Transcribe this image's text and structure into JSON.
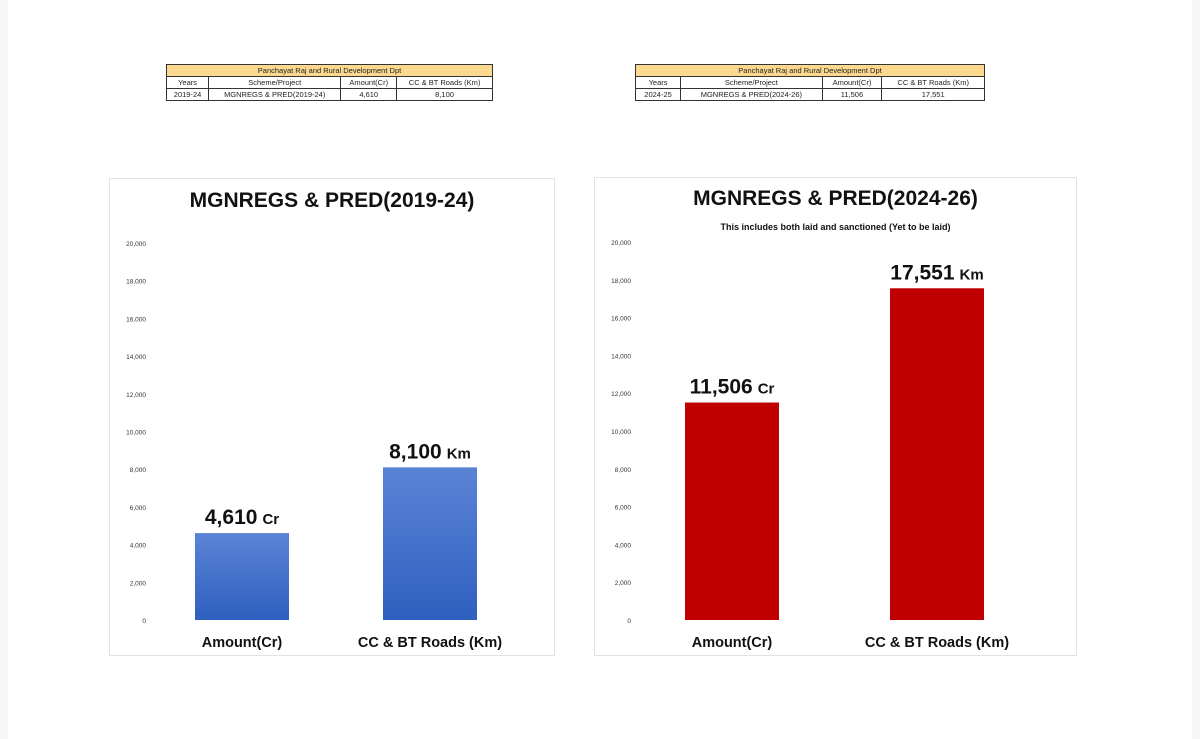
{
  "tables": [
    {
      "title": "Panchayat Raj and Rural Development Dpt",
      "headers": [
        "Years",
        "Scheme/Project",
        "Amount(Cr)",
        "CC & BT Roads (Km)"
      ],
      "row": [
        "2019-24",
        "MGNREGS & PRED(2019-24)",
        "4,610",
        "8,100"
      ]
    },
    {
      "title": "Panchayat Raj and Rural Development Dpt",
      "headers": [
        "Years",
        "Scheme/Project",
        "Amount(Cr)",
        "CC & BT Roads (Km)"
      ],
      "row": [
        "2024-25",
        "MGNREGS & PRED(2024-26)",
        "11,506",
        "17,551"
      ]
    }
  ],
  "chart_data": [
    {
      "type": "bar",
      "title": "MGNREGS & PRED(2019-24)",
      "subtitle": "",
      "categories": [
        "Amount(Cr)",
        "CC & BT Roads (Km)"
      ],
      "values": [
        4610,
        8100
      ],
      "value_numbers": [
        "4,610",
        "8,100"
      ],
      "value_units": [
        "Cr",
        "Km"
      ],
      "ylim": [
        0,
        20000
      ],
      "yticks": [
        0,
        2000,
        4000,
        6000,
        8000,
        10000,
        12000,
        14000,
        16000,
        18000,
        20000
      ],
      "ytick_labels": [
        "0",
        "2,000",
        "4,000",
        "6,000",
        "8,000",
        "10,000",
        "12,000",
        "14,000",
        "16,000",
        "18,000",
        "20,000"
      ],
      "grid": false,
      "bar_color_top": "#5b84d6",
      "bar_color_bottom": "#2f5fbf"
    },
    {
      "type": "bar",
      "title": "MGNREGS & PRED(2024-26)",
      "subtitle": "This includes both laid and sanctioned (Yet to be laid)",
      "categories": [
        "Amount(Cr)",
        "CC & BT Roads (Km)"
      ],
      "values": [
        11506,
        17551
      ],
      "value_numbers": [
        "11,506",
        "17,551"
      ],
      "value_units": [
        "Cr",
        "Km"
      ],
      "ylim": [
        0,
        20000
      ],
      "yticks": [
        0,
        2000,
        4000,
        6000,
        8000,
        10000,
        12000,
        14000,
        16000,
        18000,
        20000
      ],
      "ytick_labels": [
        "0",
        "2,000",
        "4,000",
        "6,000",
        "8,000",
        "10,000",
        "12,000",
        "14,000",
        "16,000",
        "18,000",
        "20,000"
      ],
      "grid": false,
      "bar_color_top": "#c00000",
      "bar_color_bottom": "#c00000"
    }
  ]
}
